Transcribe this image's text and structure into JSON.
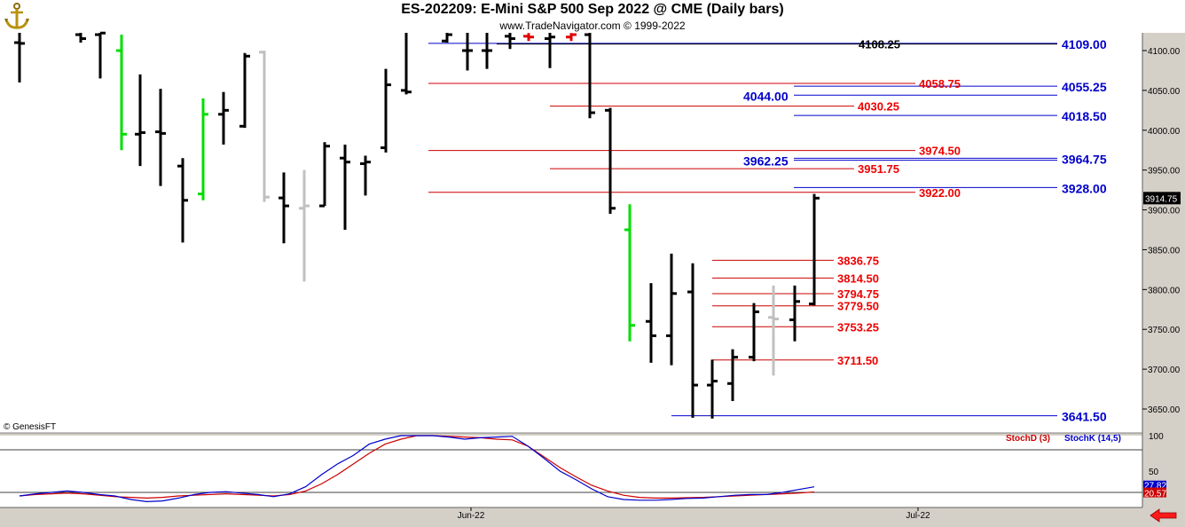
{
  "header": {
    "title": "ES-202209:  E-Mini S&P 500 Sep 2022 @ CME  (Daily bars)",
    "subtitle": "www.TradeNavigator.com © 1999-2022"
  },
  "copyright": "© GenesisFT",
  "colors": {
    "up": "#00dd00",
    "down": "#e00000",
    "bar": "#000000",
    "gray": "#c0c0c0",
    "blue": "#0000cc",
    "red": "#cc0000"
  },
  "icons": {
    "logo": "anchor-logo-icon",
    "scroll": "left-arrow-icon"
  },
  "chart_data": [
    {
      "type": "bar",
      "subtype": "ohlc",
      "title": "ES-202209:  E-Mini S&P 500 Sep 2022 @ CME  (Daily bars)",
      "ylim": [
        3620,
        4130
      ],
      "y_ticks": [
        "4100.00",
        "4050.00",
        "4000.00",
        "3950.00",
        "3900.00",
        "3850.00",
        "3800.00",
        "3750.00",
        "3700.00",
        "3650.00"
      ],
      "x_ticks": [
        "Jun-22",
        "Jul-22"
      ],
      "last_price": "3914.75",
      "bars": [
        {
          "h": 4130,
          "l": 4060,
          "o": 4110,
          "c": 4109,
          "color": "black"
        },
        {
          "h": 4130,
          "l": 4110,
          "o": 4120,
          "c": 4115,
          "color": "black"
        },
        {
          "h": 4130,
          "l": 4065,
          "o": 4120,
          "c": 4122,
          "color": "black"
        },
        {
          "h": 4120,
          "l": 3975,
          "o": 4100,
          "c": 3995,
          "color": "green"
        },
        {
          "h": 4070,
          "l": 3955,
          "o": 3995,
          "c": 3997,
          "color": "black"
        },
        {
          "h": 4052,
          "l": 3930,
          "o": 3998,
          "c": 3996,
          "color": "black"
        },
        {
          "h": 3965,
          "l": 3859,
          "o": 3955,
          "c": 3912,
          "color": "black"
        },
        {
          "h": 4040,
          "l": 3912,
          "o": 3920,
          "c": 4020,
          "color": "green"
        },
        {
          "h": 4048,
          "l": 3982,
          "o": 4020,
          "c": 4025,
          "color": "black"
        },
        {
          "h": 4097,
          "l": 4003,
          "o": 4005,
          "c": 4093,
          "color": "black"
        },
        {
          "h": 4100,
          "l": 3910,
          "o": 4098,
          "c": 3916,
          "color": "gray"
        },
        {
          "h": 3947,
          "l": 3858,
          "o": 3915,
          "c": 3905,
          "color": "black"
        },
        {
          "h": 3950,
          "l": 3810,
          "o": 3902,
          "c": 3905,
          "color": "gray"
        },
        {
          "h": 3985,
          "l": 3905,
          "o": 3905,
          "c": 3980,
          "color": "black"
        },
        {
          "h": 3982,
          "l": 3875,
          "o": 3965,
          "c": 3960,
          "color": "black"
        },
        {
          "h": 3968,
          "l": 3918,
          "o": 3958,
          "c": 3960,
          "color": "black"
        },
        {
          "h": 4077,
          "l": 3972,
          "o": 3978,
          "c": 4057,
          "color": "black"
        },
        {
          "h": 4130,
          "l": 4045,
          "o": 4050,
          "c": 4048,
          "color": "black"
        },
        {
          "h": 4130,
          "l": 4110,
          "o": 4112,
          "c": 4120,
          "color": "black"
        },
        {
          "h": 4130,
          "l": 4075,
          "o": 4100,
          "c": 4100,
          "color": "black"
        },
        {
          "h": 4130,
          "l": 4077,
          "o": 4100,
          "c": 4100,
          "color": "black"
        },
        {
          "h": 4130,
          "l": 4102,
          "o": 4118,
          "c": 4115,
          "color": "black"
        },
        {
          "h": 4122,
          "l": 4112,
          "o": 4118,
          "c": 4117,
          "color": "red"
        },
        {
          "h": 4130,
          "l": 4078,
          "o": 4115,
          "c": 4117,
          "color": "black"
        },
        {
          "h": 4122,
          "l": 4112,
          "o": 4117,
          "c": 4120,
          "color": "red"
        },
        {
          "h": 4130,
          "l": 4015,
          "o": 4120,
          "c": 4022,
          "color": "black"
        },
        {
          "h": 4028,
          "l": 3895,
          "o": 4025,
          "c": 3902,
          "color": "black"
        },
        {
          "h": 3907,
          "l": 3735,
          "o": 3875,
          "c": 3755,
          "color": "green"
        },
        {
          "h": 3808,
          "l": 3708,
          "o": 3760,
          "c": 3742,
          "color": "black"
        },
        {
          "h": 3845,
          "l": 3705,
          "o": 3742,
          "c": 3795,
          "color": "black"
        },
        {
          "h": 3833,
          "l": 3639,
          "o": 3797,
          "c": 3680,
          "color": "black"
        },
        {
          "h": 3712,
          "l": 3638,
          "o": 3680,
          "c": 3685,
          "color": "black"
        },
        {
          "h": 3725,
          "l": 3660,
          "o": 3682,
          "c": 3715,
          "color": "black"
        },
        {
          "h": 3783,
          "l": 3710,
          "o": 3715,
          "c": 3772,
          "color": "black"
        },
        {
          "h": 3805,
          "l": 3692,
          "o": 3765,
          "c": 3763,
          "color": "gray"
        },
        {
          "h": 3805,
          "l": 3735,
          "o": 3762,
          "c": 3785,
          "color": "black"
        },
        {
          "h": 3920,
          "l": 3780,
          "o": 3782,
          "c": 3914.75,
          "color": "black"
        }
      ],
      "levels_blue": [
        {
          "label": "4109.00",
          "value": 4109.0
        },
        {
          "label": "4055.25",
          "value": 4055.25
        },
        {
          "label": "4044.00",
          "value": 4044.0
        },
        {
          "label": "4018.50",
          "value": 4018.5
        },
        {
          "label": "3964.75",
          "value": 3964.75
        },
        {
          "label": "3962.25",
          "value": 3962.25
        },
        {
          "label": "3928.00",
          "value": 3928.0
        },
        {
          "label": "3641.50",
          "value": 3641.5
        }
      ],
      "levels_red": [
        {
          "label": "4058.75",
          "value": 4058.75
        },
        {
          "label": "4030.25",
          "value": 4030.25
        },
        {
          "label": "3974.50",
          "value": 3974.5
        },
        {
          "label": "3951.75",
          "value": 3951.75
        },
        {
          "label": "3922.00",
          "value": 3922.0
        },
        {
          "label": "3836.75",
          "value": 3836.75
        },
        {
          "label": "3814.50",
          "value": 3814.5
        },
        {
          "label": "3794.75",
          "value": 3794.75
        },
        {
          "label": "3779.50",
          "value": 3779.5
        },
        {
          "label": "3753.25",
          "value": 3753.25
        },
        {
          "label": "3711.50",
          "value": 3711.5
        }
      ],
      "level_black": {
        "label": "4108.25",
        "value": 4108.25
      }
    },
    {
      "type": "line",
      "ylim": [
        0,
        100
      ],
      "y_ticks": [
        "100",
        "50"
      ],
      "last_values": {
        "blue": "27.82",
        "red": "20.57"
      },
      "series": [
        {
          "name": "StochD (3)",
          "color": "#cc0000",
          "values": [
            15,
            17,
            18,
            19,
            18,
            16,
            14,
            13,
            12,
            13,
            15,
            16,
            17,
            18,
            17,
            16,
            15,
            17,
            22,
            32,
            45,
            60,
            75,
            88,
            95,
            100,
            100,
            99,
            98,
            97,
            95,
            94,
            85,
            70,
            55,
            42,
            30,
            22,
            16,
            13,
            12,
            12,
            12.5,
            13,
            14,
            15,
            16,
            17,
            18,
            19,
            20.57
          ]
        },
        {
          "name": "StochK (14,5)",
          "color": "#0000cc",
          "values": [
            15,
            18,
            20,
            22,
            20,
            17,
            15,
            10,
            7,
            8,
            12,
            17,
            20,
            21,
            19,
            17,
            14,
            18,
            28,
            45,
            60,
            72,
            88,
            95,
            100,
            100,
            100,
            98,
            95,
            97,
            98,
            99,
            85,
            68,
            50,
            38,
            25,
            14,
            10,
            9,
            9,
            10,
            11.5,
            12,
            14,
            16,
            17,
            17,
            20,
            24,
            27.82
          ]
        }
      ],
      "refs": [
        80,
        20
      ]
    }
  ]
}
